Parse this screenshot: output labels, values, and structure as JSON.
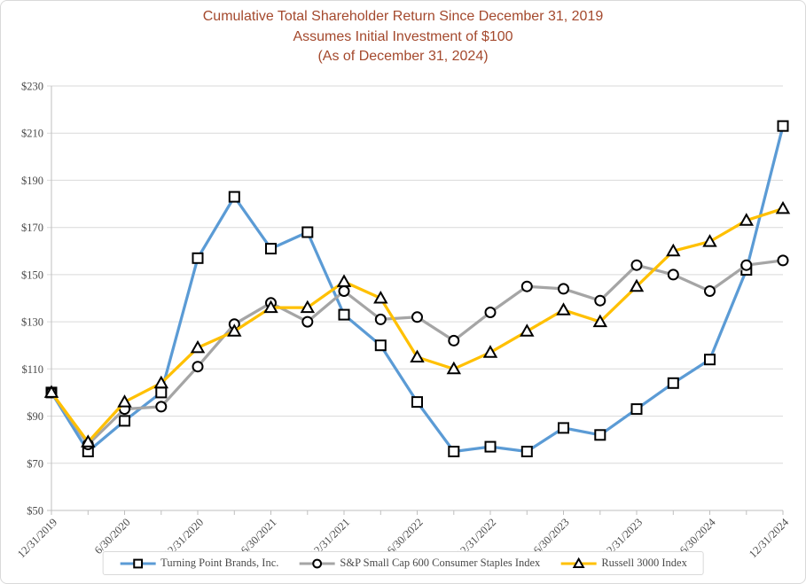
{
  "title": {
    "line1": "Cumulative Total Shareholder Return Since December 31, 2019",
    "line2": "Assumes Initial Investment of $100",
    "line3": "(As of December 31, 2024)"
  },
  "colors": {
    "title_text": "#A4492D",
    "axis_text": "#4A4A4A",
    "gridline": "#D9D9D9",
    "axis_line": "#BFBFBF",
    "marker_outline": "#000000",
    "chart_border": "#D9D9D9",
    "series": {
      "tpb": "#5B9BD5",
      "sp600": "#A5A5A5",
      "russell3000": "#FFC000"
    }
  },
  "chart_data": {
    "type": "line",
    "x": [
      "12/31/2019",
      "3/31/2020",
      "6/30/2020",
      "9/30/2020",
      "12/31/2020",
      "3/31/2021",
      "6/30/2021",
      "9/30/2021",
      "12/31/2021",
      "3/31/2022",
      "6/30/2022",
      "9/30/2022",
      "12/31/2022",
      "3/31/2023",
      "6/30/2023",
      "9/30/2023",
      "12/31/2023",
      "3/31/2024",
      "6/30/2024",
      "9/30/2024",
      "12/31/2024"
    ],
    "x_axis_label_every": 2,
    "series": [
      {
        "name": "Turning Point Brands, Inc.",
        "marker": "square",
        "color_key": "tpb",
        "values": [
          100,
          75,
          88,
          100,
          157,
          183,
          161,
          168,
          133,
          120,
          96,
          75,
          77,
          75,
          85,
          82,
          93,
          104,
          114,
          152,
          213
        ]
      },
      {
        "name": "S&P Small Cap 600 Consumer Staples Index",
        "marker": "circle",
        "color_key": "sp600",
        "values": [
          100,
          78,
          93,
          94,
          111,
          129,
          138,
          130,
          143,
          131,
          132,
          122,
          134,
          145,
          144,
          139,
          154,
          150,
          143,
          154,
          156
        ]
      },
      {
        "name": "Russell 3000 Index",
        "marker": "triangle",
        "color_key": "russell3000",
        "values": [
          100,
          79,
          96,
          104,
          119,
          126,
          136,
          136,
          147,
          140,
          115,
          110,
          117,
          126,
          135,
          130,
          145,
          160,
          164,
          173,
          178
        ]
      }
    ],
    "ylim": [
      50,
      230
    ],
    "y_tick_step": 20,
    "y_tick_prefix": "$",
    "grid": true,
    "legend_position": "bottom"
  }
}
